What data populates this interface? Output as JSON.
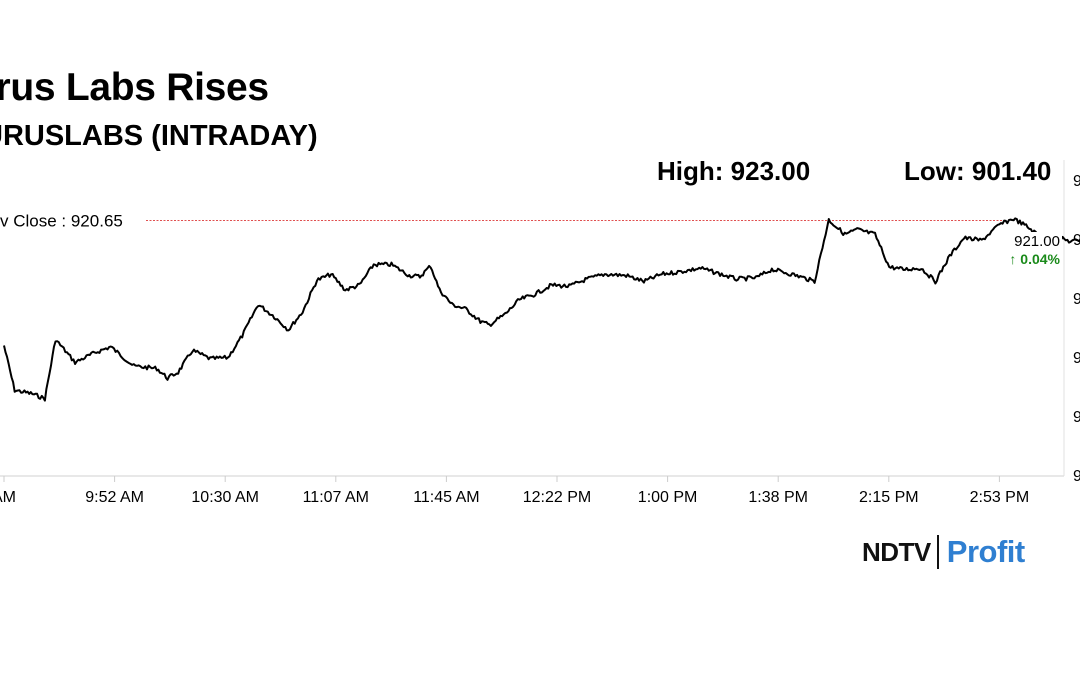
{
  "title": "urus Labs Rises",
  "subtitle": "URUSLABS (INTRADAY)",
  "high_label": "High: 923.00",
  "low_label": "Low: 901.40",
  "prev_close_label": "v Close : 920.65",
  "last_price_label": "921.00",
  "change_label": "↑ 0.04%",
  "brand": {
    "left": "NDTV",
    "right": "Profit"
  },
  "colors": {
    "line": "#000000",
    "prev_close_line": "#e05050",
    "up": "#1a8a1a",
    "high_marker": "#2e8b2e",
    "low_marker": "#1f3fbf",
    "brand_accent": "#2f7fd1"
  },
  "chart_data": {
    "type": "line",
    "x_tick_labels": [
      "AM",
      "9:52 AM",
      "10:30 AM",
      "11:07 AM",
      "11:45 AM",
      "12:22 PM",
      "1:00 PM",
      "1:38 PM",
      "2:15 PM",
      "2:53 PM"
    ],
    "y_tick_labels": [
      "9",
      "9",
      "9",
      "9",
      "9",
      "9"
    ],
    "prev_close": 920.65,
    "high": 923.0,
    "low": 901.4,
    "last": 921.0,
    "change_pct": 0.04,
    "ylim": [
      899.5,
      924.0
    ],
    "series": [
      {
        "points": [
          [
            9.32,
            910.3
          ],
          [
            9.38,
            906.6
          ],
          [
            9.48,
            906.3
          ],
          [
            9.55,
            905.9
          ],
          [
            9.61,
            910.8
          ],
          [
            9.72,
            908.9
          ],
          [
            9.83,
            909.7
          ],
          [
            9.92,
            910.2
          ],
          [
            10.05,
            908.6
          ],
          [
            10.18,
            908.4
          ],
          [
            10.24,
            907.6
          ],
          [
            10.3,
            908.1
          ],
          [
            10.38,
            909.9
          ],
          [
            10.48,
            909.2
          ],
          [
            10.58,
            909.3
          ],
          [
            10.66,
            911.1
          ],
          [
            10.75,
            913.7
          ],
          [
            10.84,
            912.7
          ],
          [
            10.92,
            911.6
          ],
          [
            11.0,
            913.1
          ],
          [
            11.08,
            915.7
          ],
          [
            11.16,
            916.2
          ],
          [
            11.24,
            914.9
          ],
          [
            11.32,
            915.3
          ],
          [
            11.4,
            917.0
          ],
          [
            11.5,
            917.0
          ],
          [
            11.6,
            916.1
          ],
          [
            11.66,
            916.0
          ],
          [
            11.72,
            916.9
          ],
          [
            11.77,
            914.9
          ],
          [
            11.84,
            913.7
          ],
          [
            11.92,
            913.3
          ],
          [
            12.0,
            912.3
          ],
          [
            12.05,
            912.0
          ],
          [
            12.14,
            912.9
          ],
          [
            12.22,
            914.1
          ],
          [
            12.3,
            914.5
          ],
          [
            12.4,
            915.3
          ],
          [
            12.5,
            915.2
          ],
          [
            12.6,
            915.8
          ],
          [
            12.7,
            916.2
          ],
          [
            12.82,
            916.1
          ],
          [
            12.92,
            915.6
          ],
          [
            13.02,
            916.2
          ],
          [
            13.12,
            916.4
          ],
          [
            13.24,
            916.7
          ],
          [
            13.33,
            916.3
          ],
          [
            13.44,
            915.8
          ],
          [
            13.55,
            915.9
          ],
          [
            13.64,
            916.6
          ],
          [
            13.7,
            916.4
          ],
          [
            13.8,
            916.0
          ],
          [
            13.88,
            915.6
          ],
          [
            13.96,
            920.7
          ],
          [
            14.05,
            919.5
          ],
          [
            14.12,
            919.9
          ],
          [
            14.22,
            919.5
          ],
          [
            14.3,
            916.8
          ],
          [
            14.38,
            916.6
          ],
          [
            14.48,
            916.7
          ],
          [
            14.56,
            915.6
          ],
          [
            14.64,
            917.7
          ],
          [
            14.72,
            919.2
          ],
          [
            14.82,
            919.0
          ],
          [
            14.92,
            920.3
          ],
          [
            15.0,
            920.8
          ],
          [
            15.07,
            920.2
          ],
          [
            15.16,
            919.2
          ],
          [
            15.24,
            919.3
          ],
          [
            15.32,
            918.9
          ],
          [
            15.41,
            919.1
          ],
          [
            15.49,
            919.9
          ],
          [
            15.56,
            920.4
          ],
          [
            15.6,
            922.5
          ],
          [
            15.64,
            923.0
          ],
          [
            15.68,
            922.4
          ],
          [
            15.72,
            921.1
          ],
          [
            15.76,
            921.0
          ]
        ]
      }
    ]
  }
}
